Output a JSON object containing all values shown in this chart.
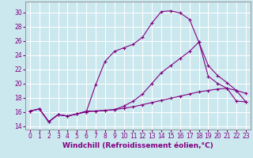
{
  "background_color": "#cce8ef",
  "grid_color": "#ffffff",
  "line_color": "#800080",
  "marker": "+",
  "xlabel": "Windchill (Refroidissement éolien,°C)",
  "xlabel_fontsize": 6.5,
  "tick_fontsize": 5.5,
  "xlim": [
    -0.5,
    23.5
  ],
  "ylim": [
    13.5,
    31.5
  ],
  "yticks": [
    14,
    16,
    18,
    20,
    22,
    24,
    26,
    28,
    30
  ],
  "xticks": [
    0,
    1,
    2,
    3,
    4,
    5,
    6,
    7,
    8,
    9,
    10,
    11,
    12,
    13,
    14,
    15,
    16,
    17,
    18,
    19,
    20,
    21,
    22,
    23
  ],
  "curve1_x": [
    0,
    1,
    2,
    3,
    4,
    5,
    6,
    7,
    8,
    9,
    10,
    11,
    12,
    13,
    14,
    15,
    16,
    17,
    18,
    19,
    20,
    21,
    22,
    23
  ],
  "curve1_y": [
    16.1,
    16.4,
    14.6,
    15.6,
    15.4,
    15.7,
    16.1,
    16.1,
    16.2,
    16.3,
    16.5,
    16.7,
    17.0,
    17.3,
    17.6,
    17.9,
    18.2,
    18.5,
    18.8,
    19.0,
    19.2,
    19.3,
    17.5,
    17.4
  ],
  "curve2_x": [
    0,
    1,
    2,
    3,
    4,
    5,
    6,
    7,
    8,
    9,
    10,
    11,
    12,
    13,
    14,
    15,
    16,
    17,
    18,
    19,
    20,
    21,
    22,
    23
  ],
  "curve2_y": [
    16.1,
    16.4,
    14.6,
    15.6,
    15.4,
    15.7,
    16.0,
    19.8,
    23.1,
    24.5,
    25.0,
    25.5,
    26.5,
    28.5,
    30.1,
    30.2,
    29.9,
    29.0,
    25.8,
    22.5,
    21.1,
    20.1,
    19.0,
    18.6
  ],
  "curve3_x": [
    0,
    1,
    2,
    3,
    4,
    5,
    6,
    7,
    8,
    9,
    10,
    11,
    12,
    13,
    14,
    15,
    16,
    17,
    18,
    19,
    20,
    21,
    22,
    23
  ],
  "curve3_y": [
    16.1,
    16.4,
    14.6,
    15.6,
    15.4,
    15.7,
    16.0,
    16.1,
    16.2,
    16.3,
    16.8,
    17.5,
    18.5,
    20.0,
    21.5,
    22.5,
    23.5,
    24.5,
    25.8,
    21.0,
    20.0,
    19.3,
    19.0,
    17.4
  ]
}
